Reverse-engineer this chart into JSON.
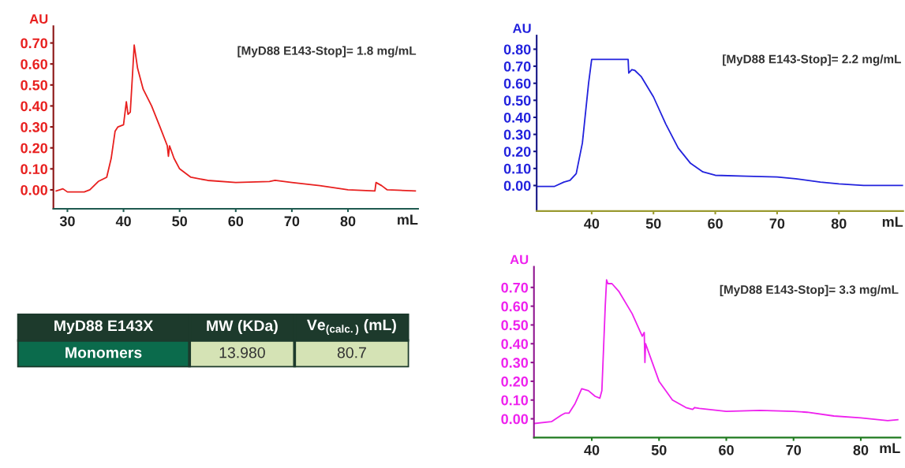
{
  "chart_data": [
    {
      "type": "line",
      "ylabel": "AU",
      "xlabel": "mL",
      "annotations": [
        "[MyD88 E143-Stop]= 1.8 mg/mL"
      ],
      "xlim": [
        27.5,
        92.5
      ],
      "ylim": [
        -0.09,
        0.78
      ],
      "xticks": [
        30,
        40,
        50,
        60,
        70,
        80
      ],
      "yticks": [
        {
          "value": 0,
          "label": "0.00"
        },
        {
          "value": 0.1,
          "label": "0.10"
        },
        {
          "value": 0.2,
          "label": "0.20"
        },
        {
          "value": 0.3,
          "label": "0.30"
        },
        {
          "value": 0.4,
          "label": "0.40"
        },
        {
          "value": 0.5,
          "label": "0.50"
        },
        {
          "value": 0.6,
          "label": "0.60"
        },
        {
          "value": 0.7,
          "label": "0.70"
        }
      ],
      "grid": false,
      "marker": "none",
      "line_style": "solid",
      "series": [
        {
          "color": "#e8201f",
          "x": [
            28,
            29.2,
            30,
            33,
            34,
            35.5,
            37,
            37.8,
            38.5,
            39,
            40,
            40.5,
            40.8,
            41.2,
            41.6,
            41.9,
            42.5,
            43.5,
            45,
            46.5,
            47.8,
            48,
            48.2,
            49,
            50,
            52,
            55,
            60,
            66,
            67,
            70,
            75,
            80,
            84.8,
            85,
            86,
            87,
            92
          ],
          "values": [
            -0.005,
            0.005,
            -0.01,
            -0.01,
            0.0,
            0.04,
            0.06,
            0.15,
            0.28,
            0.3,
            0.31,
            0.42,
            0.36,
            0.37,
            0.55,
            0.69,
            0.58,
            0.48,
            0.4,
            0.3,
            0.21,
            0.16,
            0.21,
            0.15,
            0.1,
            0.06,
            0.045,
            0.035,
            0.04,
            0.045,
            0.035,
            0.02,
            0.0,
            -0.005,
            0.035,
            0.02,
            0.0,
            -0.005
          ]
        }
      ]
    },
    {
      "type": "line",
      "ylabel": "AU",
      "xlabel": "mL",
      "annotations": [
        "[MyD88 E143-Stop]= 2.2 mg/mL"
      ],
      "xlim": [
        31.1,
        90.4
      ],
      "ylim": [
        -0.15,
        0.88
      ],
      "xticks": [
        40,
        50,
        60,
        70,
        80
      ],
      "yticks": [
        {
          "value": 0,
          "label": "0.00"
        },
        {
          "value": 0.1,
          "label": "0.10"
        },
        {
          "value": 0.2,
          "label": "0.20"
        },
        {
          "value": 0.3,
          "label": "0.30"
        },
        {
          "value": 0.4,
          "label": "0.40"
        },
        {
          "value": 0.5,
          "label": "0.50"
        },
        {
          "value": 0.6,
          "label": "0.60"
        },
        {
          "value": 0.7,
          "label": "0.70"
        },
        {
          "value": 0.8,
          "label": "0.80"
        }
      ],
      "grid": false,
      "marker": "none",
      "line_style": "solid",
      "series": [
        {
          "color": "#2222dd",
          "x": [
            31.2,
            34,
            35.5,
            36.5,
            37.5,
            38.5,
            39.5,
            40,
            45.9,
            46,
            46.5,
            47,
            48,
            50,
            52,
            54,
            56,
            58,
            60,
            65,
            70,
            73,
            77,
            80,
            84,
            90.3
          ],
          "values": [
            -0.005,
            -0.005,
            0.02,
            0.03,
            0.07,
            0.25,
            0.6,
            0.74,
            0.74,
            0.66,
            0.68,
            0.675,
            0.64,
            0.52,
            0.36,
            0.22,
            0.13,
            0.08,
            0.06,
            0.055,
            0.05,
            0.04,
            0.02,
            0.01,
            0.0,
            0.0
          ]
        }
      ]
    },
    {
      "type": "other",
      "annotations": [
        "MyD88 E143X",
        "MW (KDa)",
        "Ve$_{(calc.)}$ (mL)",
        "Monomers",
        "13.980",
        "80.7"
      ]
    },
    {
      "type": "line",
      "ylabel": "AU",
      "xlabel": "mL",
      "annotations": [
        "[MyD88 E143-Stop]= 3.3 mg/mL"
      ],
      "xlim": [
        31.4,
        85.9
      ],
      "ylim": [
        -0.1,
        0.81
      ],
      "xticks": [
        40,
        50,
        60,
        70,
        80
      ],
      "yticks": [
        {
          "value": 0,
          "label": "0.00"
        },
        {
          "value": 0.1,
          "label": "0.10"
        },
        {
          "value": 0.2,
          "label": "0.20"
        },
        {
          "value": 0.3,
          "label": "0.30"
        },
        {
          "value": 0.4,
          "label": "0.40"
        },
        {
          "value": 0.5,
          "label": "0.50"
        },
        {
          "value": 0.6,
          "label": "0.60"
        },
        {
          "value": 0.7,
          "label": "0.70"
        }
      ],
      "grid": false,
      "marker": "none",
      "line_style": "solid",
      "series": [
        {
          "color": "#ee22ee",
          "x": [
            31.5,
            34,
            35.5,
            36,
            36.6,
            37.5,
            38.5,
            39.5,
            40.5,
            41.2,
            41.5,
            42,
            42.2,
            42.4,
            43,
            44,
            46,
            47.5,
            47.8,
            47.9,
            48,
            49,
            50,
            52,
            54,
            55,
            55.3,
            56,
            60,
            65,
            70,
            72,
            76,
            80,
            84,
            85.5
          ],
          "values": [
            -0.025,
            -0.015,
            0.02,
            0.03,
            0.03,
            0.08,
            0.16,
            0.15,
            0.12,
            0.11,
            0.15,
            0.6,
            0.74,
            0.72,
            0.72,
            0.68,
            0.56,
            0.44,
            0.46,
            0.3,
            0.4,
            0.3,
            0.2,
            0.1,
            0.06,
            0.05,
            0.06,
            0.055,
            0.04,
            0.045,
            0.04,
            0.035,
            0.015,
            0.005,
            -0.01,
            -0.005
          ]
        }
      ]
    }
  ]
}
